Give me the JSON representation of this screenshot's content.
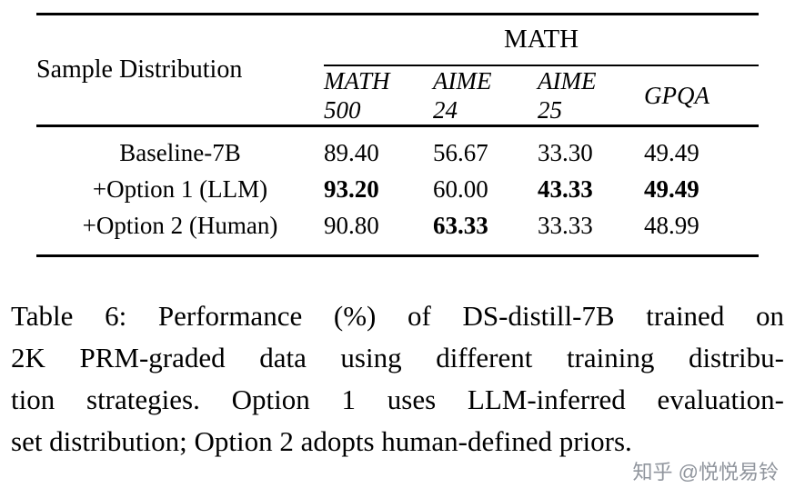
{
  "table": {
    "corner_header": "Sample Distribution",
    "group_header": "MATH",
    "columns": [
      {
        "line1": "MATH",
        "line2": "500"
      },
      {
        "line1": "AIME",
        "line2": "24"
      },
      {
        "line1": "AIME",
        "line2": "25"
      },
      {
        "line1": "GPQA",
        "line2": ""
      }
    ],
    "rows": [
      {
        "label": "Baseline-7B",
        "values": [
          "89.40",
          "56.67",
          "33.30",
          "49.49"
        ]
      },
      {
        "label": "+Option 1 (LLM)",
        "values": [
          "93.20",
          "60.00",
          "43.33",
          "49.49"
        ]
      },
      {
        "label": "+Option 2 (Human)",
        "values": [
          "90.80",
          "63.33",
          "33.33",
          "48.99"
        ]
      }
    ]
  },
  "caption": {
    "lines": [
      "Table 6:  Performance (%) of DS-distill-7B trained on",
      "2K PRM-graded data using different training distribu-",
      "tion strategies. Option 1 uses LLM-inferred evaluation-",
      "set distribution; Option 2 adopts human-defined priors."
    ]
  },
  "watermark": "知乎 @悦悦易铃"
}
